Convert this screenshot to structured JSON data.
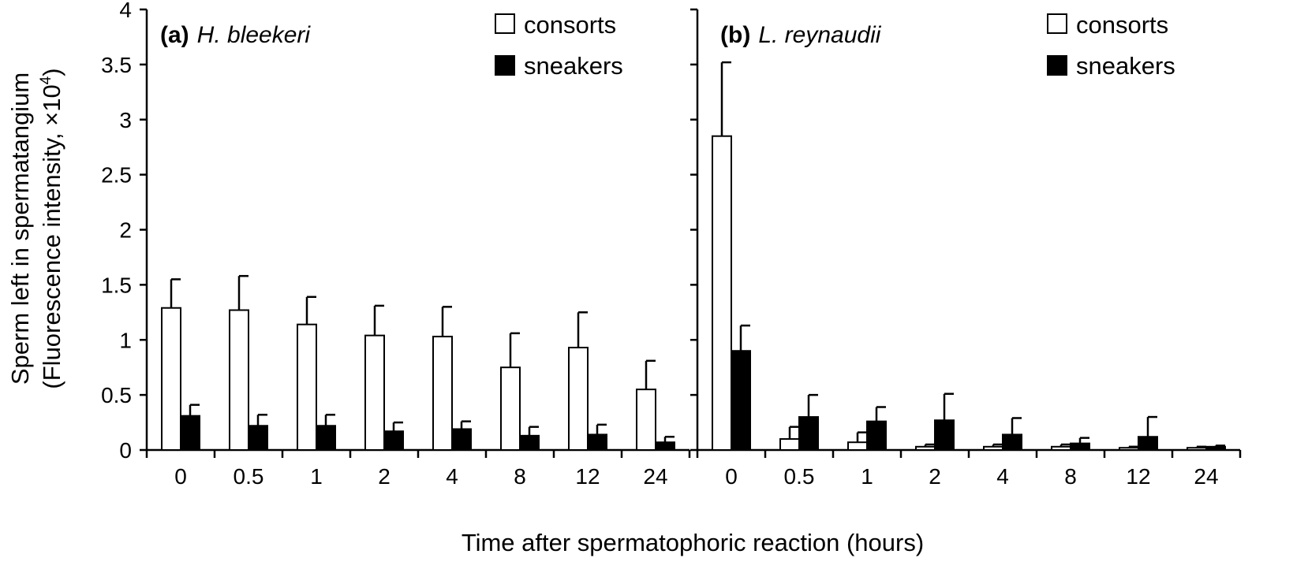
{
  "chart_data": [
    {
      "type": "bar",
      "panel_letter": "(a)",
      "species": "H. bleekeri",
      "categories": [
        "0",
        "0.5",
        "1",
        "2",
        "4",
        "8",
        "12",
        "24"
      ],
      "ylim": [
        0,
        4
      ],
      "yticks": [
        "0",
        "0.5",
        "1",
        "1.5",
        "2",
        "2.5",
        "3",
        "3.5",
        "4"
      ],
      "series": [
        {
          "name": "consorts",
          "values": [
            1.29,
            1.27,
            1.14,
            1.04,
            1.03,
            0.75,
            0.93,
            0.55
          ],
          "errors": [
            0.26,
            0.31,
            0.25,
            0.27,
            0.27,
            0.31,
            0.32,
            0.26
          ],
          "color": "#ffffff"
        },
        {
          "name": "sneakers",
          "values": [
            0.31,
            0.22,
            0.22,
            0.17,
            0.19,
            0.13,
            0.14,
            0.07
          ],
          "errors": [
            0.1,
            0.1,
            0.1,
            0.08,
            0.07,
            0.08,
            0.09,
            0.05
          ],
          "color": "#000000"
        }
      ]
    },
    {
      "type": "bar",
      "panel_letter": "(b)",
      "species": "L. reynaudii",
      "categories": [
        "0",
        "0.5",
        "1",
        "2",
        "4",
        "8",
        "12",
        "24"
      ],
      "ylim": [
        0,
        4
      ],
      "series": [
        {
          "name": "consorts",
          "values": [
            2.85,
            0.1,
            0.07,
            0.03,
            0.03,
            0.03,
            0.02,
            0.02
          ],
          "errors": [
            0.67,
            0.11,
            0.09,
            0.02,
            0.02,
            0.02,
            0.01,
            0.01
          ],
          "color": "#ffffff"
        },
        {
          "name": "sneakers",
          "values": [
            0.9,
            0.3,
            0.26,
            0.27,
            0.14,
            0.06,
            0.12,
            0.03
          ],
          "errors": [
            0.23,
            0.2,
            0.13,
            0.24,
            0.15,
            0.05,
            0.18,
            0.01
          ],
          "color": "#000000"
        }
      ]
    }
  ],
  "ylabel_line1": "Sperm left in spermatangium",
  "ylabel_line2_prefix": "(Fluorescence intensity, ×10",
  "ylabel_line2_exp": "4",
  "ylabel_line2_suffix": ")",
  "xlabel": "Time after spermatophoric reaction (hours)",
  "legend": {
    "consorts": "consorts",
    "sneakers": "sneakers"
  }
}
